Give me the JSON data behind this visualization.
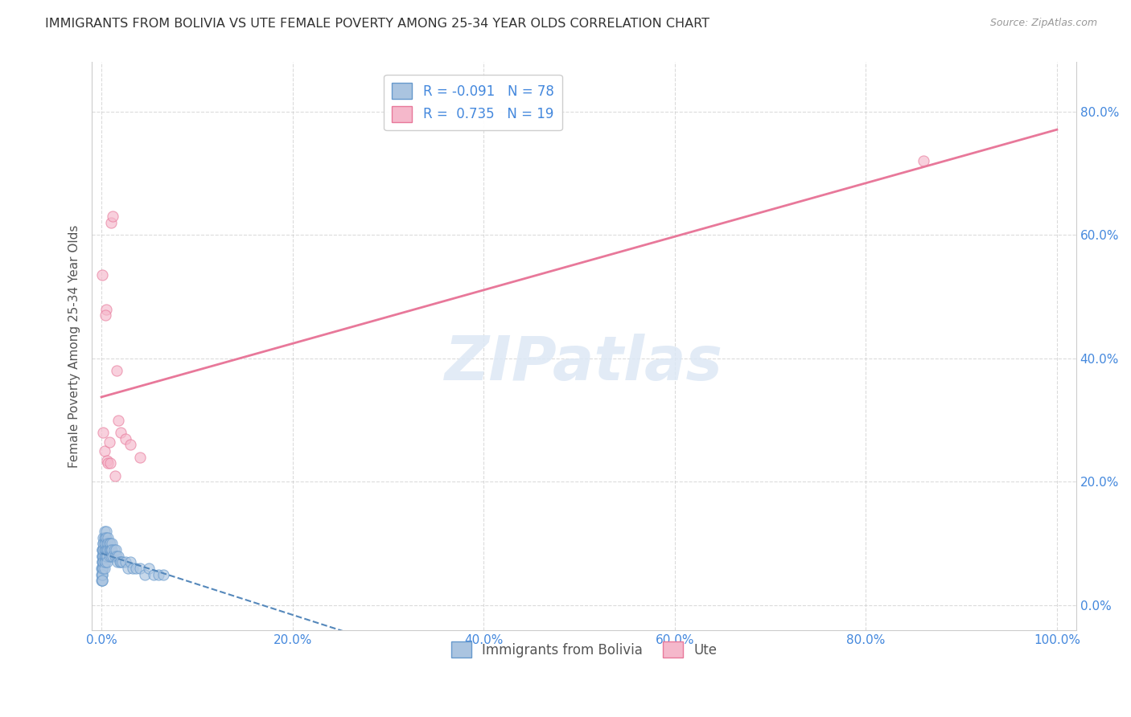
{
  "title": "IMMIGRANTS FROM BOLIVIA VS UTE FEMALE POVERTY AMONG 25-34 YEAR OLDS CORRELATION CHART",
  "source": "Source: ZipAtlas.com",
  "ylabel": "Female Poverty Among 25-34 Year Olds",
  "legend_label1": "Immigrants from Bolivia",
  "legend_label2": "Ute",
  "r1": -0.091,
  "n1": 78,
  "r2": 0.735,
  "n2": 19,
  "color_blue": "#aac4e0",
  "color_pink": "#f5b8cb",
  "edge_blue": "#6699cc",
  "edge_pink": "#e8789a",
  "line_blue": "#5588bb",
  "line_pink": "#e8789a",
  "bolivia_x": [
    0.0,
    0.0,
    0.0,
    0.001,
    0.001,
    0.001,
    0.001,
    0.001,
    0.001,
    0.001,
    0.001,
    0.001,
    0.001,
    0.001,
    0.001,
    0.002,
    0.002,
    0.002,
    0.002,
    0.002,
    0.002,
    0.002,
    0.002,
    0.002,
    0.002,
    0.003,
    0.003,
    0.003,
    0.003,
    0.003,
    0.003,
    0.003,
    0.004,
    0.004,
    0.004,
    0.004,
    0.004,
    0.005,
    0.005,
    0.005,
    0.005,
    0.006,
    0.006,
    0.006,
    0.006,
    0.007,
    0.007,
    0.007,
    0.008,
    0.008,
    0.008,
    0.009,
    0.009,
    0.01,
    0.01,
    0.011,
    0.011,
    0.012,
    0.013,
    0.014,
    0.015,
    0.016,
    0.017,
    0.018,
    0.019,
    0.02,
    0.022,
    0.025,
    0.028,
    0.03,
    0.033,
    0.036,
    0.04,
    0.045,
    0.05,
    0.055,
    0.06,
    0.065
  ],
  "bolivia_y": [
    0.05,
    0.06,
    0.04,
    0.08,
    0.07,
    0.06,
    0.09,
    0.05,
    0.04,
    0.07,
    0.06,
    0.08,
    0.05,
    0.04,
    0.09,
    0.1,
    0.08,
    0.09,
    0.07,
    0.06,
    0.11,
    0.08,
    0.1,
    0.09,
    0.07,
    0.12,
    0.09,
    0.08,
    0.11,
    0.07,
    0.1,
    0.06,
    0.11,
    0.09,
    0.08,
    0.1,
    0.07,
    0.12,
    0.09,
    0.08,
    0.11,
    0.1,
    0.09,
    0.08,
    0.07,
    0.11,
    0.1,
    0.09,
    0.1,
    0.09,
    0.08,
    0.1,
    0.09,
    0.09,
    0.08,
    0.1,
    0.09,
    0.08,
    0.09,
    0.08,
    0.09,
    0.08,
    0.07,
    0.08,
    0.07,
    0.07,
    0.07,
    0.07,
    0.06,
    0.07,
    0.06,
    0.06,
    0.06,
    0.05,
    0.06,
    0.05,
    0.05,
    0.05
  ],
  "ute_x": [
    0.001,
    0.002,
    0.003,
    0.005,
    0.006,
    0.007,
    0.008,
    0.009,
    0.01,
    0.012,
    0.014,
    0.016,
    0.018,
    0.02,
    0.025,
    0.03,
    0.04,
    0.86,
    0.004
  ],
  "ute_y": [
    0.535,
    0.28,
    0.25,
    0.48,
    0.235,
    0.23,
    0.265,
    0.23,
    0.62,
    0.63,
    0.21,
    0.38,
    0.3,
    0.28,
    0.27,
    0.26,
    0.24,
    0.72,
    0.47
  ],
  "xlim": [
    -0.01,
    1.02
  ],
  "ylim": [
    -0.04,
    0.88
  ],
  "xticks": [
    0.0,
    0.2,
    0.4,
    0.6,
    0.8,
    1.0
  ],
  "yticks": [
    0.0,
    0.2,
    0.4,
    0.6,
    0.8
  ],
  "background_color": "#ffffff",
  "grid_color": "#cccccc"
}
